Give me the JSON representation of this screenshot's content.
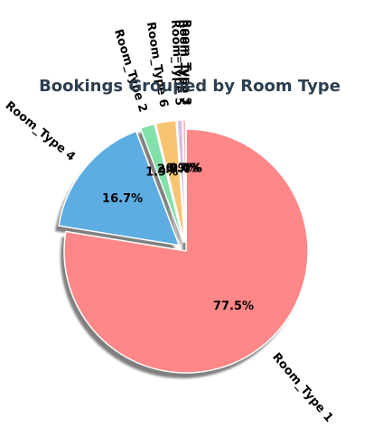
{
  "chart_data": {
    "type": "pie",
    "title": "Bookings Grouped by Room Type",
    "start_angle_deg": 90,
    "direction": "clockwise",
    "shadow": true,
    "slices": [
      {
        "label": "Room_Type 1",
        "pct_label": "77.5%",
        "value": 77.5,
        "color": "#ff8787",
        "exploded": false
      },
      {
        "label": "Room_Type 4",
        "pct_label": "16.7%",
        "value": 16.7,
        "color": "#5dade2",
        "exploded": true
      },
      {
        "label": "Room_Type 2",
        "pct_label": "1.9%",
        "value": 1.9,
        "color": "#82e0aa",
        "exploded": true
      },
      {
        "label": "Room_Type 6",
        "pct_label": "2.7%",
        "value": 2.7,
        "color": "#f8c471",
        "exploded": true
      },
      {
        "label": "Room_Type 5",
        "pct_label": "0.7%",
        "value": 0.7,
        "color": "#d7bde2",
        "exploded": true
      },
      {
        "label": "Room_Type 7",
        "pct_label": "0.4%",
        "value": 0.4,
        "color": "#f5b7b1",
        "exploded": true
      },
      {
        "label": "Room_Type 3",
        "pct_label": "0.0%",
        "value": 0.02,
        "color": "#aed6f1",
        "exploded": true
      }
    ]
  }
}
